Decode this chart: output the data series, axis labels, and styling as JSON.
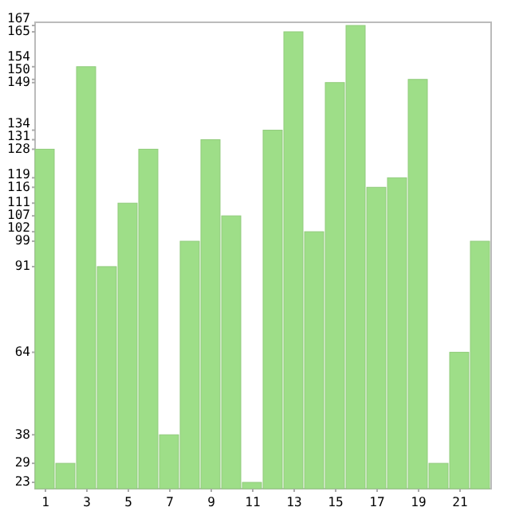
{
  "chart_data": {
    "type": "bar",
    "x": [
      1,
      2,
      3,
      4,
      5,
      6,
      7,
      8,
      9,
      10,
      11,
      12,
      13,
      14,
      15,
      16,
      17,
      18,
      19,
      20,
      21,
      22
    ],
    "xlim": [
      0.5,
      22.5
    ],
    "xticks": [
      1,
      3,
      5,
      7,
      9,
      11,
      13,
      15,
      17,
      19,
      21
    ],
    "values": [
      128,
      29,
      154,
      91,
      111,
      128,
      38,
      99,
      131,
      107,
      23,
      134,
      165,
      102,
      149,
      167,
      116,
      119,
      150,
      29,
      64,
      99
    ],
    "color": "#9ede88",
    "ylim": [
      21,
      168
    ],
    "yticks": [
      23,
      29,
      38,
      64,
      91,
      99,
      102,
      107,
      111,
      116,
      119,
      128,
      131,
      134,
      149,
      150,
      154,
      165,
      167
    ],
    "grid": false
  }
}
